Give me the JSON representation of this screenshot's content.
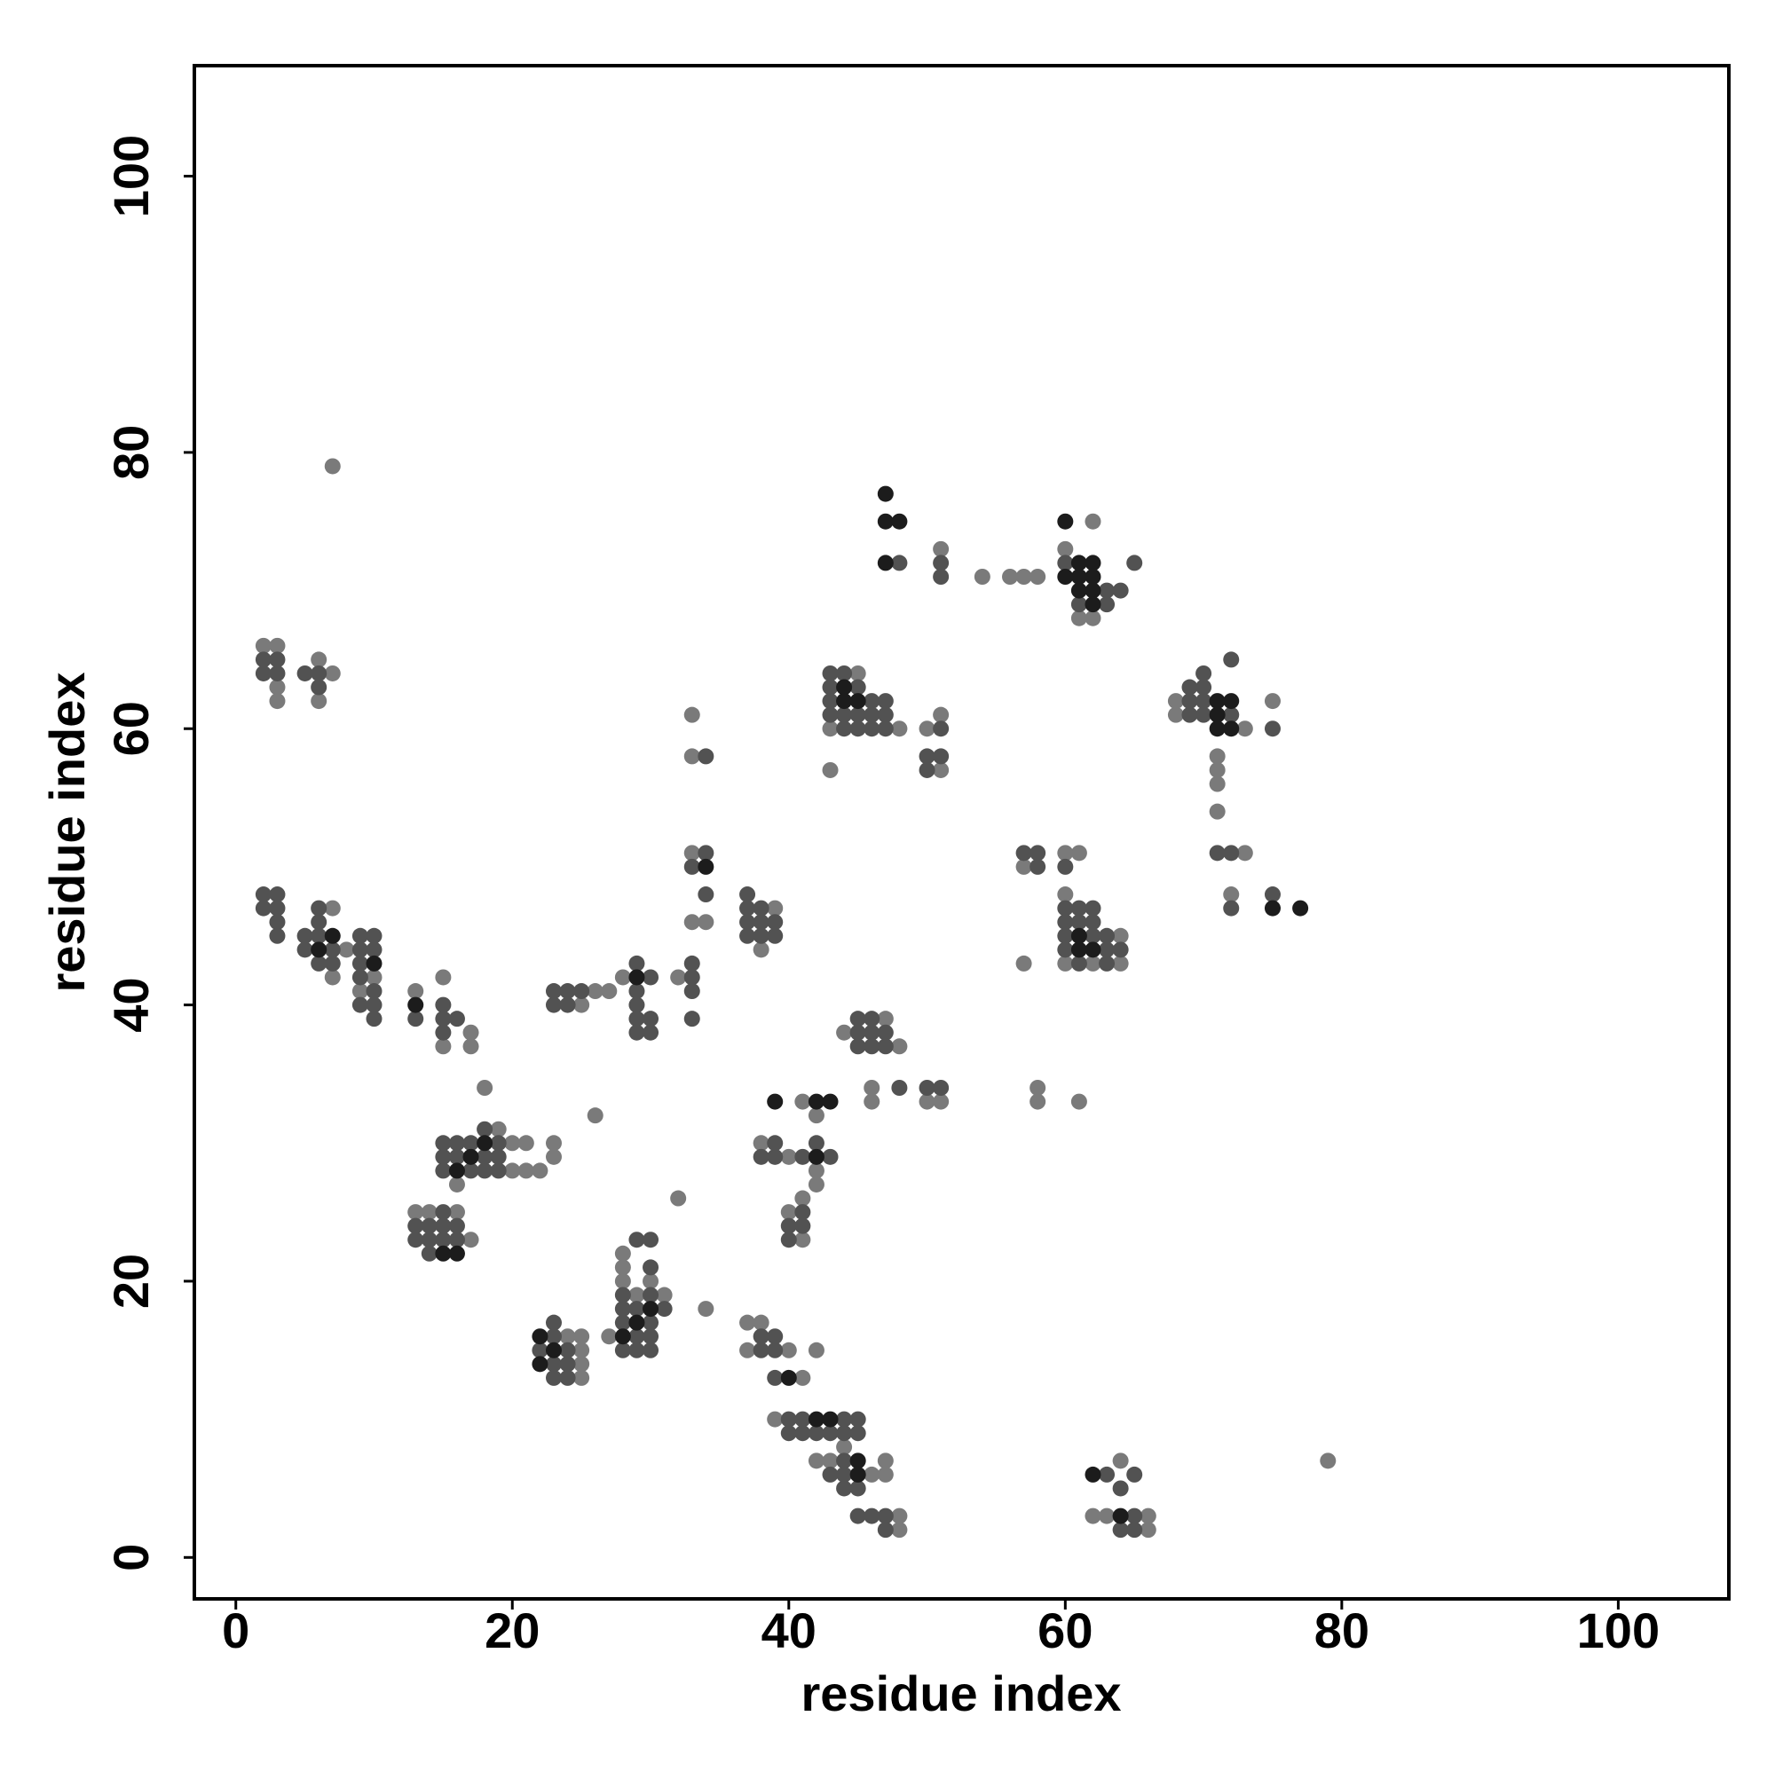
{
  "chart_data": {
    "type": "scatter",
    "xlabel": "residue index",
    "ylabel": "residue index",
    "xlim": [
      -3,
      108
    ],
    "ylim": [
      -3,
      108
    ],
    "xticks": [
      0,
      20,
      40,
      60,
      80,
      100
    ],
    "yticks": [
      0,
      20,
      40,
      60,
      80,
      100
    ],
    "series": [
      {
        "color": "#7a7a7a",
        "x": [
          7,
          54,
          56,
          57,
          58,
          2,
          3,
          6,
          7,
          3,
          3,
          6,
          7,
          7,
          8,
          9,
          10,
          13,
          15,
          15,
          17,
          17,
          16,
          18,
          19,
          20,
          21,
          20,
          21,
          22,
          23,
          23,
          13,
          14,
          16,
          17,
          26,
          27,
          28,
          26,
          25,
          32,
          33,
          33,
          33,
          34,
          33,
          32,
          34,
          24,
          25,
          25,
          25,
          25,
          28,
          28,
          28,
          31,
          27,
          29,
          30,
          37,
          38,
          37,
          40,
          41,
          42,
          39,
          44,
          42,
          43,
          46,
          47,
          47,
          48,
          48,
          38,
          39,
          38,
          40,
          41,
          42,
          42,
          42,
          41,
          40,
          41,
          44,
          47,
          48,
          46,
          46,
          50,
          51,
          43,
          43,
          45,
          48,
          51,
          51,
          50,
          51,
          62,
          60,
          61,
          62,
          68,
          68,
          73,
          75,
          71,
          71,
          71,
          71,
          73,
          72,
          57,
          58,
          58,
          61,
          60,
          60,
          62,
          64,
          64,
          61,
          60,
          57,
          62,
          63,
          64,
          66,
          66,
          79
        ],
        "values": [
          79,
          71,
          71,
          71,
          71,
          66,
          66,
          65,
          64,
          63,
          62,
          62,
          47,
          42,
          44,
          41,
          42,
          41,
          42,
          37,
          38,
          37,
          27,
          34,
          31,
          30,
          30,
          28,
          28,
          28,
          30,
          29,
          25,
          25,
          25,
          23,
          32,
          41,
          42,
          41,
          40,
          42,
          61,
          58,
          46,
          46,
          51,
          26,
          18,
          16,
          16,
          15,
          14,
          13,
          22,
          21,
          20,
          19,
          16,
          19,
          20,
          17,
          17,
          15,
          15,
          13,
          15,
          10,
          8,
          7,
          7,
          6,
          7,
          6,
          3,
          2,
          44,
          47,
          30,
          29,
          33,
          32,
          28,
          27,
          26,
          25,
          23,
          38,
          39,
          37,
          34,
          33,
          33,
          33,
          57,
          60,
          64,
          60,
          61,
          57,
          60,
          73,
          75,
          73,
          68,
          68,
          62,
          61,
          60,
          62,
          58,
          57,
          56,
          54,
          51,
          48,
          43,
          34,
          33,
          33,
          48,
          43,
          43,
          43,
          45,
          51,
          51,
          50,
          3,
          3,
          7,
          2,
          3,
          7
        ]
      },
      {
        "color": "#525252",
        "x": [
          2,
          3,
          2,
          3,
          5,
          6,
          6,
          2,
          3,
          2,
          3,
          3,
          3,
          6,
          6,
          5,
          6,
          5,
          7,
          6,
          7,
          9,
          10,
          9,
          10,
          9,
          9,
          10,
          9,
          10,
          10,
          13,
          15,
          15,
          16,
          15,
          15,
          16,
          17,
          19,
          15,
          16,
          18,
          19,
          15,
          17,
          18,
          19,
          18,
          15,
          13,
          14,
          15,
          16,
          13,
          14,
          15,
          16,
          14,
          23,
          24,
          25,
          23,
          24,
          29,
          30,
          29,
          29,
          29,
          30,
          29,
          30,
          33,
          33,
          33,
          33,
          34,
          33,
          34,
          34,
          23,
          23,
          22,
          24,
          24,
          23,
          24,
          23,
          29,
          30,
          30,
          28,
          30,
          28,
          29,
          31,
          28,
          30,
          29,
          30,
          28,
          29,
          30,
          38,
          39,
          38,
          39,
          39,
          40,
          41,
          44,
          45,
          40,
          41,
          42,
          43,
          44,
          45,
          44,
          43,
          44,
          44,
          45,
          45,
          46,
          47,
          47,
          37,
          37,
          38,
          37,
          38,
          39,
          37,
          38,
          39,
          39,
          42,
          38,
          39,
          41,
          43,
          41,
          40,
          41,
          40,
          45,
          46,
          45,
          46,
          47,
          45,
          46,
          47,
          48,
          50,
          51,
          43,
          44,
          43,
          45,
          43,
          46,
          47,
          43,
          44,
          45,
          46,
          47,
          44,
          45,
          46,
          47,
          51,
          50,
          51,
          50,
          48,
          51,
          51,
          60,
          63,
          64,
          61,
          63,
          65,
          72,
          70,
          69,
          70,
          69,
          70,
          69,
          70,
          72,
          75,
          71,
          72,
          72,
          75,
          57,
          58,
          58,
          60,
          60,
          61,
          62,
          60,
          61,
          62,
          60,
          62,
          63,
          60,
          63,
          64,
          61,
          63,
          63,
          65,
          64,
          65,
          64,
          65
        ],
        "values": [
          65,
          65,
          64,
          64,
          64,
          64,
          63,
          48,
          48,
          47,
          47,
          46,
          45,
          47,
          46,
          45,
          45,
          44,
          44,
          43,
          43,
          45,
          45,
          44,
          44,
          43,
          42,
          41,
          40,
          40,
          39,
          39,
          40,
          39,
          39,
          38,
          30,
          30,
          30,
          30,
          29,
          29,
          29,
          29,
          28,
          28,
          28,
          28,
          31,
          25,
          24,
          24,
          24,
          24,
          23,
          23,
          23,
          23,
          22,
          41,
          41,
          41,
          40,
          40,
          43,
          42,
          41,
          40,
          39,
          39,
          38,
          38,
          43,
          42,
          41,
          39,
          51,
          50,
          48,
          58,
          16,
          17,
          15,
          15,
          14,
          14,
          13,
          13,
          23,
          23,
          21,
          19,
          19,
          18,
          18,
          18,
          17,
          17,
          16,
          16,
          15,
          15,
          15,
          16,
          16,
          15,
          15,
          13,
          10,
          10,
          10,
          10,
          9,
          9,
          9,
          9,
          9,
          9,
          7,
          6,
          6,
          5,
          5,
          3,
          3,
          3,
          2,
          48,
          47,
          47,
          46,
          46,
          46,
          45,
          45,
          45,
          30,
          30,
          29,
          29,
          29,
          29,
          25,
          24,
          24,
          23,
          39,
          39,
          38,
          38,
          38,
          37,
          37,
          37,
          34,
          34,
          34,
          64,
          64,
          63,
          63,
          62,
          62,
          62,
          61,
          61,
          61,
          61,
          61,
          60,
          60,
          60,
          60,
          60,
          58,
          58,
          57,
          72,
          72,
          71,
          72,
          70,
          70,
          69,
          69,
          72,
          65,
          64,
          63,
          63,
          62,
          62,
          61,
          61,
          61,
          60,
          51,
          51,
          47,
          48,
          51,
          51,
          50,
          50,
          47,
          47,
          47,
          46,
          46,
          46,
          45,
          45,
          45,
          44,
          44,
          44,
          43,
          43,
          6,
          6,
          5,
          3,
          2,
          2
        ]
      },
      {
        "color": "#1c1c1c",
        "x": [
          47,
          47,
          48,
          60,
          61,
          61,
          62,
          62,
          61,
          62,
          62,
          71,
          71,
          71,
          72,
          72,
          75,
          77,
          61,
          61,
          62,
          44,
          44,
          45,
          29,
          42,
          42,
          43,
          45,
          45,
          16,
          17,
          18,
          22,
          22,
          23,
          15,
          16,
          28,
          29,
          30,
          7,
          6,
          10,
          13,
          40,
          64,
          62,
          34,
          47,
          60,
          39,
          42,
          43
        ],
        "values": [
          77,
          75,
          75,
          71,
          71,
          72,
          72,
          71,
          70,
          70,
          69,
          62,
          61,
          60,
          60,
          62,
          47,
          47,
          45,
          44,
          44,
          63,
          62,
          62,
          42,
          29,
          10,
          10,
          7,
          6,
          28,
          29,
          30,
          16,
          14,
          15,
          22,
          22,
          16,
          17,
          18,
          45,
          44,
          43,
          40,
          13,
          3,
          6,
          50,
          72,
          75,
          33,
          33,
          33
        ]
      }
    ]
  }
}
